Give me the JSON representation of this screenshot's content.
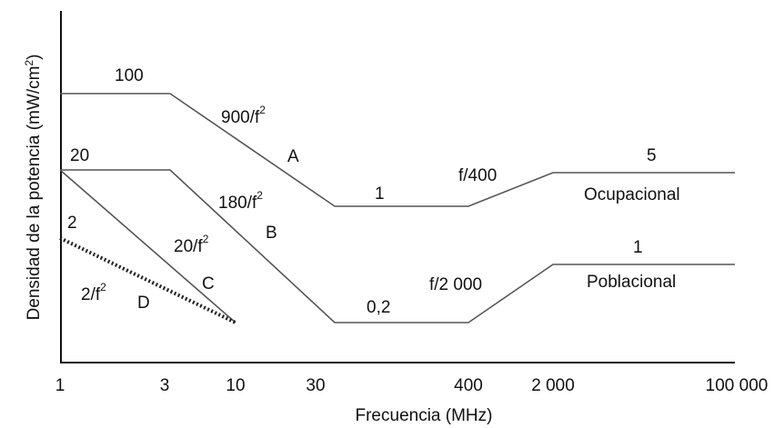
{
  "chart_data": {
    "type": "line",
    "title": "",
    "xlabel": "Frecuencia (MHz)",
    "ylabel": "Densidad de la potencia (mW/cm2)",
    "ylabel_text": "Densidad de la potencia (mW/cm",
    "ylabel_sup": "2",
    "ylabel_close": ")",
    "x_scale": "log",
    "y_scale": "log",
    "grid": false,
    "x_ticks": [
      "1",
      "3",
      "10",
      "30",
      "400",
      "2 000",
      "100 000"
    ],
    "x_tick_values": [
      1,
      3,
      10,
      30,
      400,
      2000,
      100000
    ],
    "series": [
      {
        "name": "Ocupacional",
        "style": "solid",
        "x": [
          1,
          3,
          30,
          400,
          2000,
          100000
        ],
        "y": [
          100,
          100,
          1,
          1,
          5,
          5
        ]
      },
      {
        "name": "Poblacional",
        "style": "solid",
        "x": [
          1,
          3,
          30,
          400,
          2000,
          100000
        ],
        "y": [
          20,
          20,
          0.2,
          0.2,
          1,
          1
        ]
      },
      {
        "name": "C",
        "style": "solid",
        "x": [
          1,
          10
        ],
        "y": [
          20,
          0.2
        ]
      },
      {
        "name": "D",
        "style": "dotted",
        "x": [
          1,
          10
        ],
        "y": [
          2,
          0.2
        ]
      }
    ],
    "annotations": [
      {
        "id": "v100",
        "text": "100"
      },
      {
        "id": "f900",
        "text": "900/f",
        "sup": "2"
      },
      {
        "id": "A",
        "text": "A"
      },
      {
        "id": "v1o",
        "text": "1"
      },
      {
        "id": "f400",
        "text": "f/400"
      },
      {
        "id": "v5",
        "text": "5"
      },
      {
        "id": "ocupacional",
        "text": "Ocupacional"
      },
      {
        "id": "v20",
        "text": "20"
      },
      {
        "id": "f180",
        "text": "180/f",
        "sup": "2"
      },
      {
        "id": "B",
        "text": "B"
      },
      {
        "id": "v2",
        "text": "2"
      },
      {
        "id": "f20",
        "text": "20/f",
        "sup": "2"
      },
      {
        "id": "C",
        "text": "C"
      },
      {
        "id": "f2",
        "text": "2/f",
        "sup": "2"
      },
      {
        "id": "D",
        "text": "D"
      },
      {
        "id": "v02",
        "text": "0,2"
      },
      {
        "id": "f2000",
        "text": "f/2 000"
      },
      {
        "id": "v1p",
        "text": "1"
      },
      {
        "id": "poblacional",
        "text": "Poblacional"
      }
    ]
  }
}
